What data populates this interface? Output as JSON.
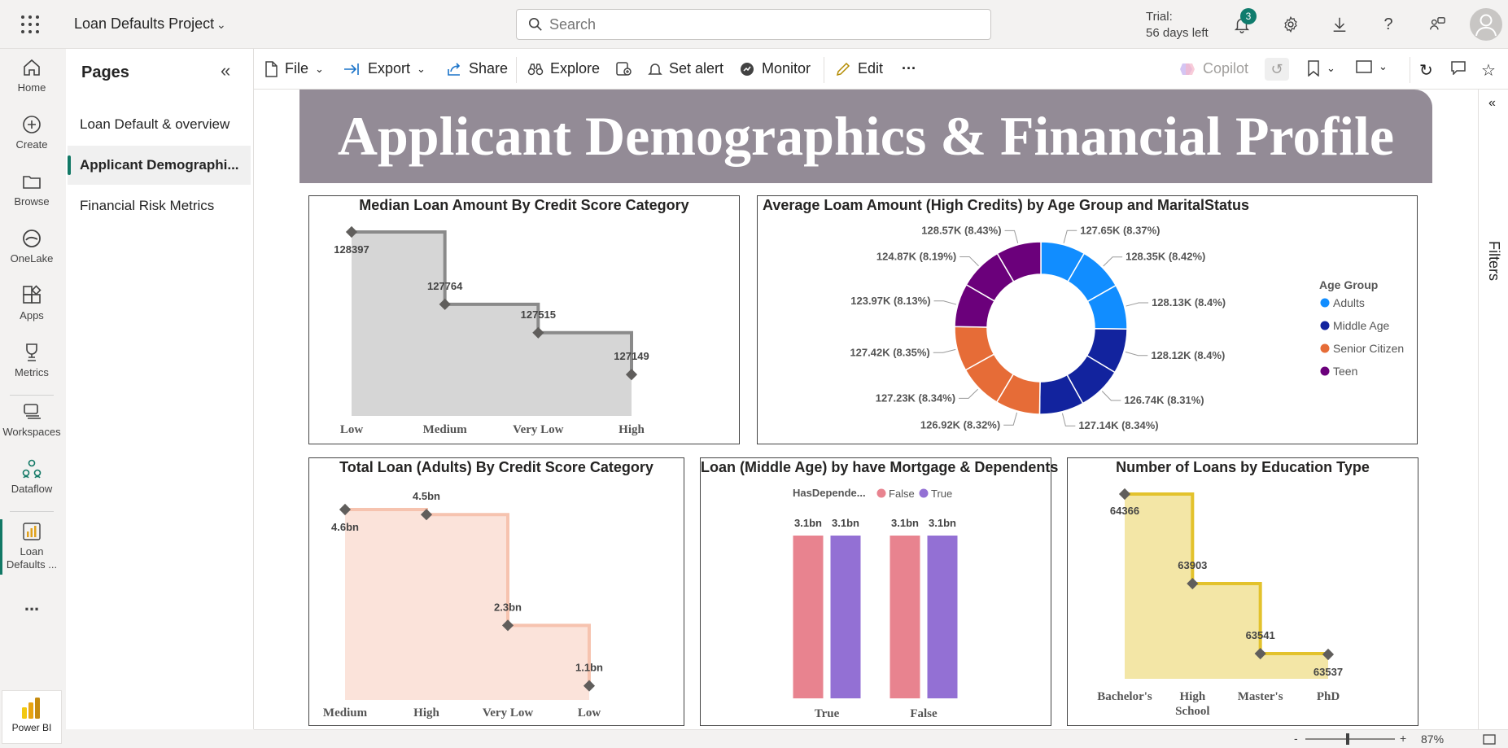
{
  "app": {
    "workspace_name": "Loan Defaults Project",
    "search_placeholder": "Search",
    "trial_line1": "Trial:",
    "trial_line2": "56 days left",
    "notification_count": "3",
    "brand": "Power BI",
    "accent_color": "#117865"
  },
  "nav": {
    "items": [
      {
        "label": "Home",
        "icon": "home-icon"
      },
      {
        "label": "Create",
        "icon": "plus-circle-icon"
      },
      {
        "label": "Browse",
        "icon": "folder-icon"
      },
      {
        "label": "OneLake",
        "icon": "onelake-icon"
      },
      {
        "label": "Apps",
        "icon": "apps-icon"
      },
      {
        "label": "Metrics",
        "icon": "trophy-icon"
      },
      {
        "label": "Workspaces",
        "icon": "workspaces-icon"
      },
      {
        "label": "Dataflow",
        "icon": "dataflow-icon"
      },
      {
        "label": "Loan Defaults ...",
        "icon": "report-icon"
      }
    ],
    "more": "..."
  },
  "pages": {
    "title": "Pages",
    "items": [
      {
        "label": "Loan Default & overview",
        "active": false
      },
      {
        "label": "Applicant Demographi...",
        "active": true
      },
      {
        "label": "Financial Risk Metrics",
        "active": false
      }
    ]
  },
  "toolbar": {
    "file": "File",
    "export": "Export",
    "share": "Share",
    "explore": "Explore",
    "set_alert": "Set alert",
    "monitor": "Monitor",
    "edit": "Edit",
    "more": "···",
    "copilot": "Copilot"
  },
  "filters_label": "Filters",
  "zoom": {
    "minus": "-",
    "plus": "+",
    "value": "87%"
  },
  "report": {
    "banner_title": "Applicant Demographics & Financial Profile"
  },
  "chart_data": [
    {
      "id": "median-loan",
      "type": "area",
      "title": "Median Loan Amount By Credit Score Category",
      "categories": [
        "Low",
        "Medium",
        "Very Low",
        "High"
      ],
      "values": [
        128397,
        127764,
        127515,
        127149
      ],
      "labels": [
        "128397",
        "127764",
        "127515",
        "127149"
      ],
      "color": "#8a8a8a",
      "fill": "#d6d6d6"
    },
    {
      "id": "avg-loan-donut",
      "type": "pie",
      "title": "Average Loam Amount (High Credits) by Age Group and MaritalStatus",
      "legend_title": "Age Group",
      "legend_position": "right",
      "legend": [
        {
          "name": "Adults",
          "color": "#118dff"
        },
        {
          "name": "Middle Age",
          "color": "#12239e"
        },
        {
          "name": "Senior Citizen",
          "color": "#e66c37"
        },
        {
          "name": "Teen",
          "color": "#6b007b"
        }
      ],
      "slices": [
        {
          "group": "Adults",
          "value": 127.65,
          "label": "127.65K (8.37%)"
        },
        {
          "group": "Adults",
          "value": 128.35,
          "label": "128.35K (8.42%)"
        },
        {
          "group": "Adults",
          "value": 128.13,
          "label": "128.13K (8.4%)"
        },
        {
          "group": "Middle Age",
          "value": 128.12,
          "label": "128.12K (8.4%)"
        },
        {
          "group": "Middle Age",
          "value": 126.74,
          "label": "126.74K (8.31%)"
        },
        {
          "group": "Middle Age",
          "value": 127.14,
          "label": "127.14K (8.34%)"
        },
        {
          "group": "Senior Citizen",
          "value": 126.92,
          "label": "126.92K (8.32%)"
        },
        {
          "group": "Senior Citizen",
          "value": 127.23,
          "label": "127.23K (8.34%)"
        },
        {
          "group": "Senior Citizen",
          "value": 127.42,
          "label": "127.42K (8.35%)"
        },
        {
          "group": "Teen",
          "value": 123.97,
          "label": "123.97K (8.13%)"
        },
        {
          "group": "Teen",
          "value": 124.87,
          "label": "124.87K (8.19%)"
        },
        {
          "group": "Teen",
          "value": 128.57,
          "label": "128.57K (8.43%)"
        }
      ]
    },
    {
      "id": "total-loan-adults",
      "type": "area",
      "title": "Total Loan (Adults) By Credit Score Category",
      "categories": [
        "Medium",
        "High",
        "Very Low",
        "Low"
      ],
      "values": [
        4.6,
        4.5,
        2.3,
        1.1
      ],
      "labels": [
        "4.6bn",
        "4.5bn",
        "2.3bn",
        "1.1bn"
      ],
      "color": "#f6c3af",
      "fill": "#fbe3da"
    },
    {
      "id": "loan-middle-age",
      "type": "bar",
      "title": "Loan (Middle Age) by have Mortgage & Dependents",
      "legend_title": "HasDepende...",
      "legend_position": "top-left",
      "categories": [
        "True",
        "False"
      ],
      "series": [
        {
          "name": "False",
          "color": "#e8838f",
          "values": [
            3.1,
            3.1
          ],
          "labels": [
            "3.1bn",
            "3.1bn"
          ]
        },
        {
          "name": "True",
          "color": "#9370d4",
          "values": [
            3.1,
            3.1
          ],
          "labels": [
            "3.1bn",
            "3.1bn"
          ]
        }
      ]
    },
    {
      "id": "loans-education",
      "type": "area",
      "title": "Number of Loans by Education Type",
      "categories": [
        "Bachelor's",
        "High School",
        "Master's",
        "PhD"
      ],
      "values": [
        64366,
        63903,
        63541,
        63537
      ],
      "labels": [
        "64366",
        "63903",
        "63541",
        "63537"
      ],
      "color": "#e3c22c",
      "fill": "#f3e6a6"
    }
  ]
}
